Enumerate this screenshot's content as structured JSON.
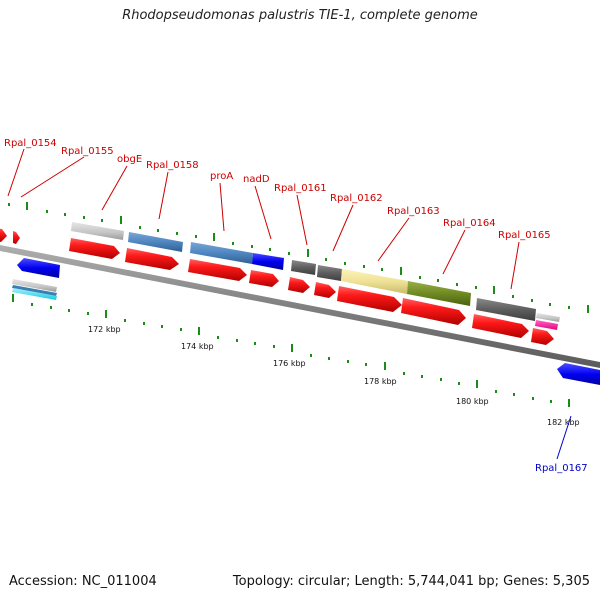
{
  "title": "Rhodopseudomonas palustris TIE-1, complete genome",
  "footer": {
    "accession": "Accession: NC_011004",
    "topology": "Topology: circular; Length: 5,744,041 bp; Genes: 5,305"
  },
  "scale_labels": [
    "172 kbp",
    "174 kbp",
    "176 kbp",
    "178 kbp",
    "180 kbp",
    "182 kbp"
  ],
  "gene_labels": [
    "Rpal_0154",
    "Rpal_0155",
    "obgE",
    "Rpal_0158",
    "proA",
    "nadD",
    "Rpal_0161",
    "Rpal_0162",
    "Rpal_0163",
    "Rpal_0164",
    "Rpal_0165",
    "Rpal_0167"
  ],
  "colors": {
    "gene_red": "#ff1a1a",
    "label_red": "#cc0000",
    "label_blue": "#0000cc",
    "backbone": "#8c8c8c",
    "tick_green": "#1a8c1a"
  }
}
